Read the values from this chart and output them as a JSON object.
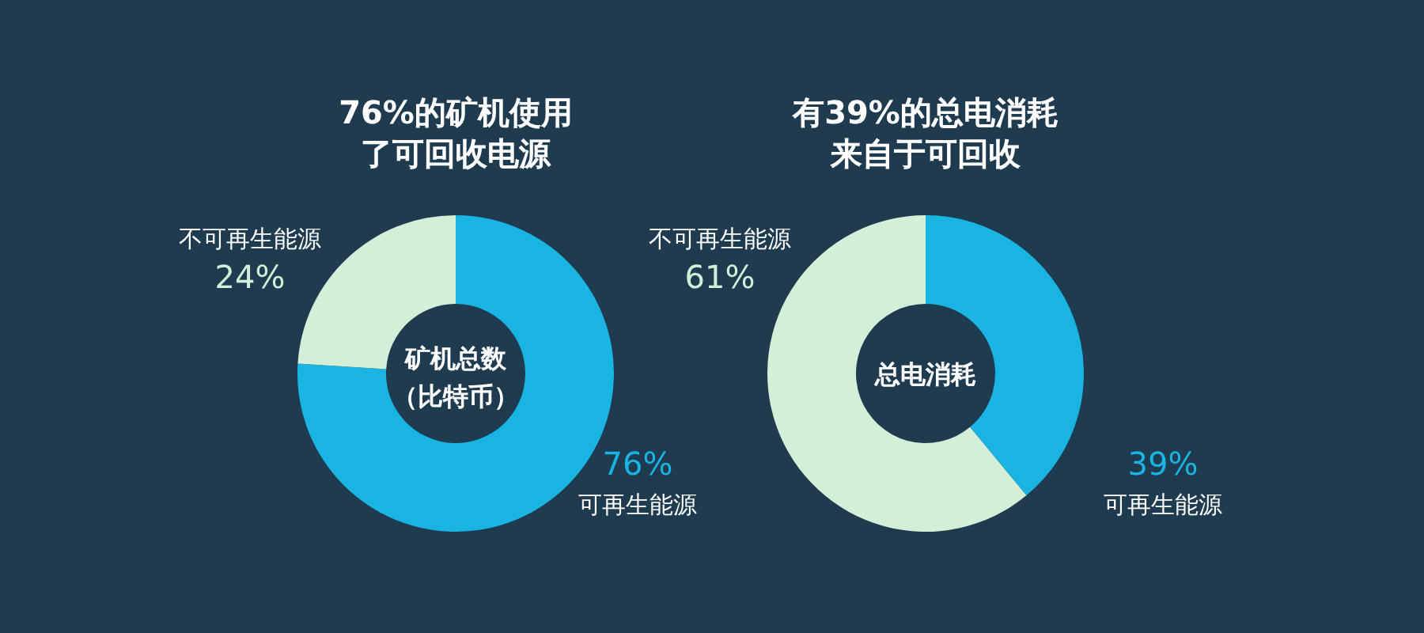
{
  "chart_data": [
    {
      "type": "donut",
      "title": "76%的矿机使用了可回收电源",
      "annotations": [
        "矿机总数（比特币）"
      ],
      "categories": [
        "可再生能源",
        "不可再生能源"
      ],
      "values": [
        76,
        24
      ],
      "colors": [
        "#19b4e2",
        "#d3efd8"
      ],
      "value_labels": [
        "76%",
        "24%"
      ]
    },
    {
      "type": "donut",
      "title": "有39%的总电消耗来自于可回收",
      "annotations": [
        "总电消耗"
      ],
      "categories": [
        "可再生能源",
        "不可再生能源"
      ],
      "values": [
        39,
        61
      ],
      "colors": [
        "#19b4e2",
        "#d3efd8"
      ],
      "value_labels": [
        "39%",
        "61%"
      ]
    }
  ]
}
